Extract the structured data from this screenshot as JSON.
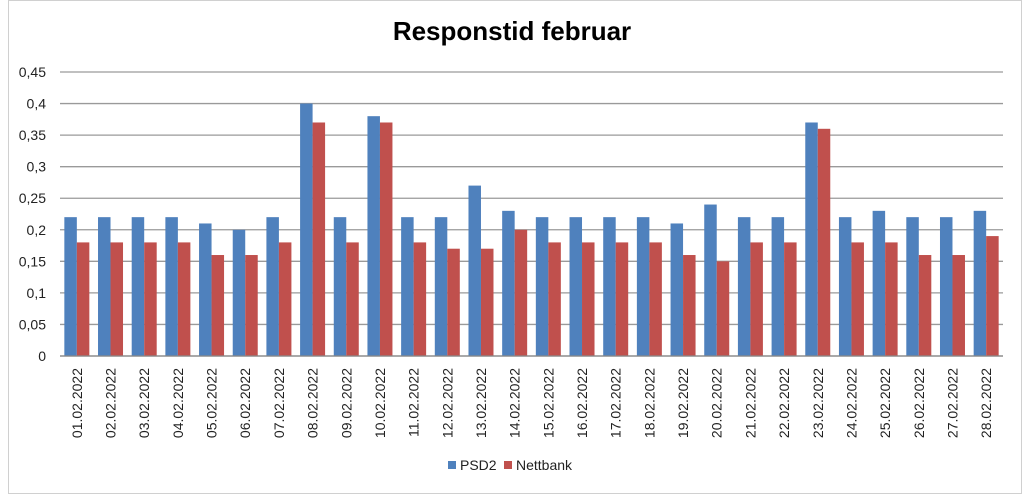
{
  "chart_data": {
    "type": "bar",
    "title": "Responstid februar",
    "xlabel": "",
    "ylabel": "",
    "ylim": [
      0,
      0.45
    ],
    "yticks": [
      "0",
      "0,05",
      "0,1",
      "0,15",
      "0,2",
      "0,25",
      "0,3",
      "0,35",
      "0,4",
      "0,45"
    ],
    "grid": true,
    "legend_position": "bottom",
    "categories": [
      "01.02.2022",
      "02.02.2022",
      "03.02.2022",
      "04.02.2022",
      "05.02.2022",
      "06.02.2022",
      "07.02.2022",
      "08.02.2022",
      "09.02.2022",
      "10.02.2022",
      "11.02.2022",
      "12.02.2022",
      "13.02.2022",
      "14.02.2022",
      "15.02.2022",
      "16.02.2022",
      "17.02.2022",
      "18.02.2022",
      "19.02.2022",
      "20.02.2022",
      "21.02.2022",
      "22.02.2022",
      "23.02.2022",
      "24.02.2022",
      "25.02.2022",
      "26.02.2022",
      "27.02.2022",
      "28.02.2022"
    ],
    "series": [
      {
        "name": "PSD2",
        "color": "#4f81bd",
        "values": [
          0.22,
          0.22,
          0.22,
          0.22,
          0.21,
          0.2,
          0.22,
          0.4,
          0.22,
          0.38,
          0.22,
          0.22,
          0.27,
          0.23,
          0.22,
          0.22,
          0.22,
          0.22,
          0.21,
          0.24,
          0.22,
          0.22,
          0.37,
          0.22,
          0.23,
          0.22,
          0.22,
          0.23
        ]
      },
      {
        "name": "Nettbank",
        "color": "#c0504d",
        "values": [
          0.18,
          0.18,
          0.18,
          0.18,
          0.16,
          0.16,
          0.18,
          0.37,
          0.18,
          0.37,
          0.18,
          0.17,
          0.17,
          0.2,
          0.18,
          0.18,
          0.18,
          0.18,
          0.16,
          0.15,
          0.18,
          0.18,
          0.36,
          0.18,
          0.18,
          0.16,
          0.16,
          0.19
        ]
      }
    ]
  }
}
